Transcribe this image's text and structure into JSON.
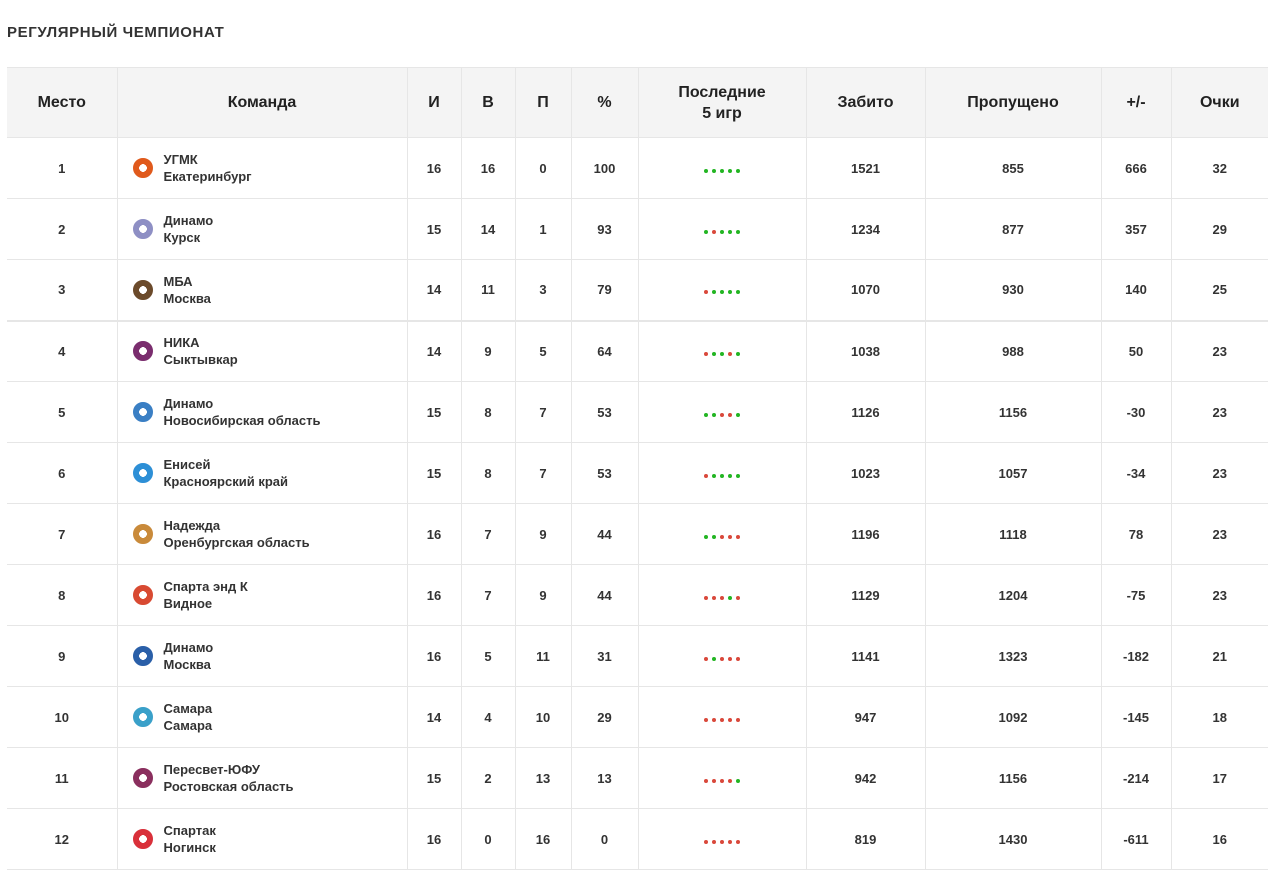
{
  "title": "РЕГУЛЯРНЫЙ ЧЕМПИОНАТ",
  "columns": {
    "place": "Место",
    "team": "Команда",
    "games": "И",
    "wins": "В",
    "losses": "П",
    "pct": "%",
    "last5_line1": "Последние",
    "last5_line2": "5 игр",
    "scored": "Забито",
    "conceded": "Пропущено",
    "diff": "+/-",
    "points": "Очки"
  },
  "colors": {
    "win": "#22b522",
    "loss": "#d9483b",
    "header_bg": "#f4f4f4",
    "border": "#e6e6e6"
  },
  "rows": [
    {
      "place": "1",
      "name": "УГМК",
      "city": "Екатеринбург",
      "games": "16",
      "wins": "16",
      "losses": "0",
      "pct": "100",
      "last5": [
        "W",
        "W",
        "W",
        "W",
        "W"
      ],
      "scored": "1521",
      "conceded": "855",
      "diff": "666",
      "points": "32",
      "logo": "ugmk-logo",
      "logo_color": "#e05a1c"
    },
    {
      "place": "2",
      "name": "Динамо",
      "city": "Курск",
      "games": "15",
      "wins": "14",
      "losses": "1",
      "pct": "93",
      "last5": [
        "W",
        "L",
        "W",
        "W",
        "W"
      ],
      "scored": "1234",
      "conceded": "877",
      "diff": "357",
      "points": "29",
      "logo": "dinamo-kursk-logo",
      "logo_color": "#8e8fc4"
    },
    {
      "place": "3",
      "name": "МБА",
      "city": "Москва",
      "games": "14",
      "wins": "11",
      "losses": "3",
      "pct": "79",
      "last5": [
        "L",
        "W",
        "W",
        "W",
        "W"
      ],
      "scored": "1070",
      "conceded": "930",
      "diff": "140",
      "points": "25",
      "logo": "mba-logo",
      "logo_color": "#6b4a2b"
    },
    {
      "place": "4",
      "name": "НИКА",
      "city": "Сыктывкар",
      "games": "14",
      "wins": "9",
      "losses": "5",
      "pct": "64",
      "last5": [
        "L",
        "W",
        "W",
        "L",
        "W"
      ],
      "scored": "1038",
      "conceded": "988",
      "diff": "50",
      "points": "23",
      "logo": "nika-logo",
      "logo_color": "#7a2d6e"
    },
    {
      "place": "5",
      "name": "Динамо",
      "city": "Новосибирская область",
      "games": "15",
      "wins": "8",
      "losses": "7",
      "pct": "53",
      "last5": [
        "W",
        "W",
        "L",
        "L",
        "W"
      ],
      "scored": "1126",
      "conceded": "1156",
      "diff": "-30",
      "points": "23",
      "logo": "dinamo-novosibirsk-logo",
      "logo_color": "#3a7fc4"
    },
    {
      "place": "6",
      "name": "Енисей",
      "city": "Красноярский край",
      "games": "15",
      "wins": "8",
      "losses": "7",
      "pct": "53",
      "last5": [
        "L",
        "W",
        "W",
        "W",
        "W"
      ],
      "scored": "1023",
      "conceded": "1057",
      "diff": "-34",
      "points": "23",
      "logo": "enisey-logo",
      "logo_color": "#2d8fd6"
    },
    {
      "place": "7",
      "name": "Надежда",
      "city": "Оренбургская область",
      "games": "16",
      "wins": "7",
      "losses": "9",
      "pct": "44",
      "last5": [
        "W",
        "W",
        "L",
        "L",
        "L"
      ],
      "scored": "1196",
      "conceded": "1118",
      "diff": "78",
      "points": "23",
      "logo": "nadezhda-logo",
      "logo_color": "#c98a3a"
    },
    {
      "place": "8",
      "name": "Спарта энд К",
      "city": "Видное",
      "games": "16",
      "wins": "7",
      "losses": "9",
      "pct": "44",
      "last5": [
        "L",
        "L",
        "L",
        "W",
        "L"
      ],
      "scored": "1129",
      "conceded": "1204",
      "diff": "-75",
      "points": "23",
      "logo": "sparta-logo",
      "logo_color": "#d84a32"
    },
    {
      "place": "9",
      "name": "Динамо",
      "city": "Москва",
      "games": "16",
      "wins": "5",
      "losses": "11",
      "pct": "31",
      "last5": [
        "L",
        "W",
        "L",
        "L",
        "L"
      ],
      "scored": "1141",
      "conceded": "1323",
      "diff": "-182",
      "points": "21",
      "logo": "dinamo-moscow-logo",
      "logo_color": "#2a5fa8"
    },
    {
      "place": "10",
      "name": "Самара",
      "city": "Самара",
      "games": "14",
      "wins": "4",
      "losses": "10",
      "pct": "29",
      "last5": [
        "L",
        "L",
        "L",
        "L",
        "L"
      ],
      "scored": "947",
      "conceded": "1092",
      "diff": "-145",
      "points": "18",
      "logo": "samara-logo",
      "logo_color": "#3aa0c9"
    },
    {
      "place": "11",
      "name": "Пересвет-ЮФУ",
      "city": "Ростовская область",
      "games": "15",
      "wins": "2",
      "losses": "13",
      "pct": "13",
      "last5": [
        "L",
        "L",
        "L",
        "L",
        "W"
      ],
      "scored": "942",
      "conceded": "1156",
      "diff": "-214",
      "points": "17",
      "logo": "peresvet-logo",
      "logo_color": "#8a2f5e"
    },
    {
      "place": "12",
      "name": "Спартак",
      "city": "Ногинск",
      "games": "16",
      "wins": "0",
      "losses": "16",
      "pct": "0",
      "last5": [
        "L",
        "L",
        "L",
        "L",
        "L"
      ],
      "scored": "819",
      "conceded": "1430",
      "diff": "-611",
      "points": "16",
      "logo": "spartak-logo",
      "logo_color": "#d9303a"
    }
  ]
}
